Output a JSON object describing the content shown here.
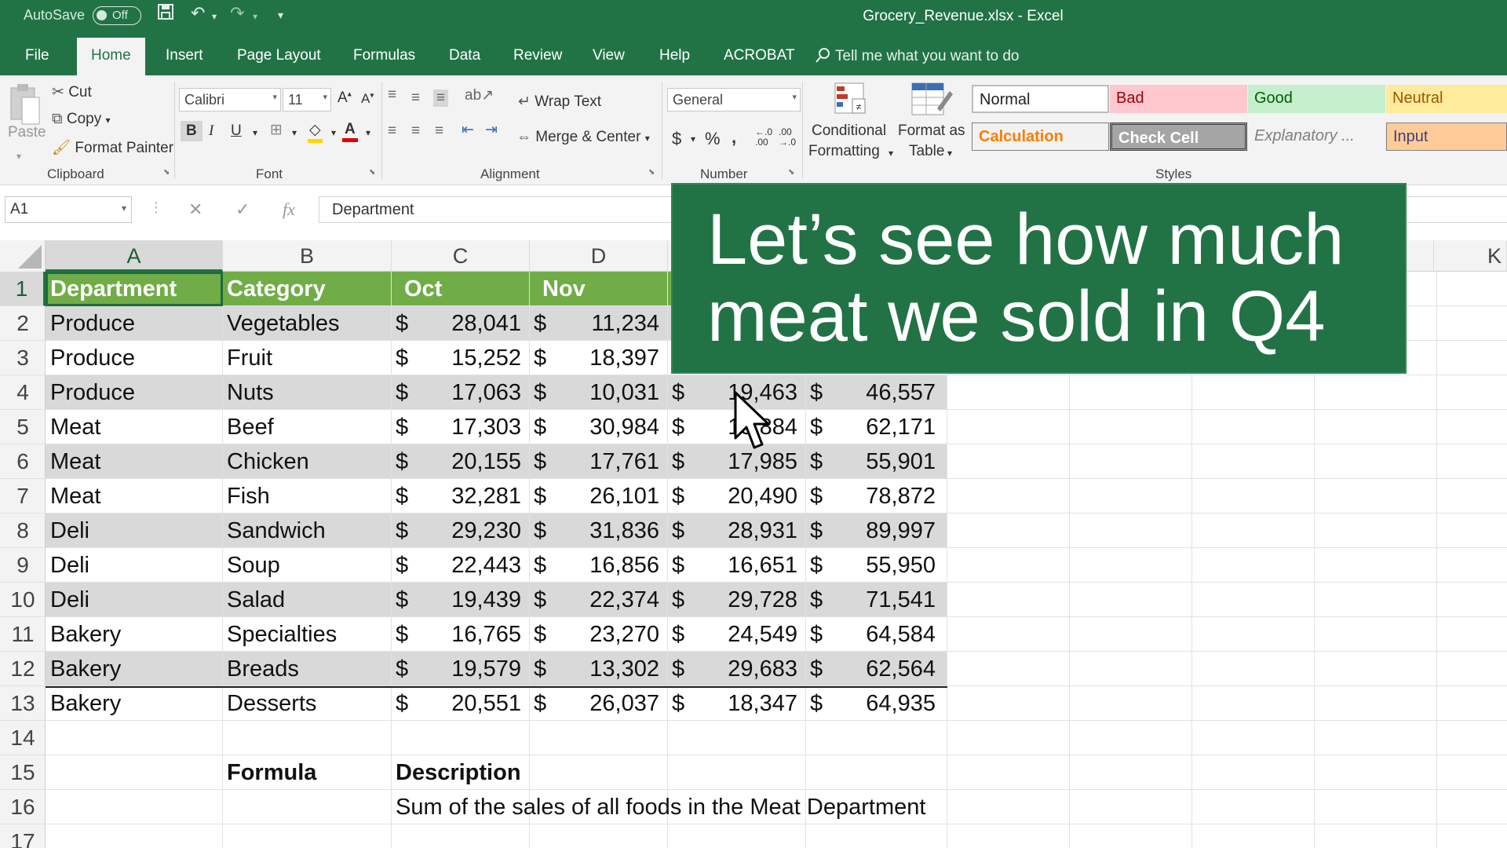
{
  "titlebar": {
    "autosave_label": "AutoSave",
    "autosave_state": "Off",
    "title": "Grocery_Revenue.xlsx  -  Excel"
  },
  "tabs": [
    "File",
    "Home",
    "Insert",
    "Page Layout",
    "Formulas",
    "Data",
    "Review",
    "View",
    "Help",
    "ACROBAT"
  ],
  "tell_me": "Tell me what you want to do",
  "ribbon": {
    "clipboard": {
      "label": "Clipboard",
      "paste": "Paste",
      "cut": "Cut",
      "copy": "Copy",
      "format_painter": "Format Painter"
    },
    "font": {
      "label": "Font",
      "name": "Calibri",
      "size": "11"
    },
    "alignment": {
      "label": "Alignment",
      "wrap_text": "Wrap Text",
      "merge_center": "Merge & Center"
    },
    "number": {
      "label": "Number",
      "format": "General"
    },
    "conditional_formatting": [
      "Conditional",
      "Formatting"
    ],
    "format_as_table": [
      "Format as",
      "Table"
    ],
    "styles": {
      "label": "Styles",
      "normal": "Normal",
      "bad": "Bad",
      "good": "Good",
      "neutral": "Neutral",
      "calculation": "Calculation",
      "check_cell": "Check Cell",
      "explanatory": "Explanatory ...",
      "input": "Input"
    }
  },
  "formula_bar": {
    "name_box": "A1",
    "fx": "fx",
    "value": "Department"
  },
  "columns": [
    "A",
    "B",
    "C",
    "D",
    "K"
  ],
  "row_numbers": [
    "1",
    "2",
    "3",
    "4",
    "5",
    "6",
    "7",
    "8",
    "9",
    "10",
    "11",
    "12",
    "13",
    "14",
    "15",
    "16",
    "17"
  ],
  "sheet": {
    "header": {
      "department": "Department",
      "category": "Category",
      "oct": "Oct",
      "nov": "Nov"
    },
    "rows": [
      {
        "dept": "Produce",
        "cat": "Vegetables",
        "c": "28,041",
        "d": "11,234",
        "e": "",
        "f": ""
      },
      {
        "dept": "Produce",
        "cat": "Fruit",
        "c": "15,252",
        "d": "18,397",
        "e": "",
        "f": ""
      },
      {
        "dept": "Produce",
        "cat": "Nuts",
        "c": "17,063",
        "d": "10,031",
        "e": "19,463",
        "f": "46,557"
      },
      {
        "dept": "Meat",
        "cat": "Beef",
        "c": "17,303",
        "d": "30,984",
        "e": "13,884",
        "f": "62,171"
      },
      {
        "dept": "Meat",
        "cat": "Chicken",
        "c": "20,155",
        "d": "17,761",
        "e": "17,985",
        "f": "55,901"
      },
      {
        "dept": "Meat",
        "cat": "Fish",
        "c": "32,281",
        "d": "26,101",
        "e": "20,490",
        "f": "78,872"
      },
      {
        "dept": "Deli",
        "cat": "Sandwich",
        "c": "29,230",
        "d": "31,836",
        "e": "28,931",
        "f": "89,997"
      },
      {
        "dept": "Deli",
        "cat": "Soup",
        "c": "22,443",
        "d": "16,856",
        "e": "16,651",
        "f": "55,950"
      },
      {
        "dept": "Deli",
        "cat": "Salad",
        "c": "19,439",
        "d": "22,374",
        "e": "29,728",
        "f": "71,541"
      },
      {
        "dept": "Bakery",
        "cat": "Specialties",
        "c": "16,765",
        "d": "23,270",
        "e": "24,549",
        "f": "64,584"
      },
      {
        "dept": "Bakery",
        "cat": "Breads",
        "c": "19,579",
        "d": "13,302",
        "e": "29,683",
        "f": "62,564"
      },
      {
        "dept": "Bakery",
        "cat": "Desserts",
        "c": "20,551",
        "d": "26,037",
        "e": "18,347",
        "f": "64,935"
      }
    ],
    "formula_label": "Formula",
    "description_label": "Description",
    "description_text": "Sum of the sales of all foods in the Meat Department"
  },
  "currency_symbol": "$",
  "overlay": {
    "line1": "Let’s see how much",
    "line2": "meat we sold in Q4"
  },
  "colors": {
    "excel_green": "#217346",
    "header_fill": "#70ad47",
    "band_fill": "#d9d9d9"
  }
}
